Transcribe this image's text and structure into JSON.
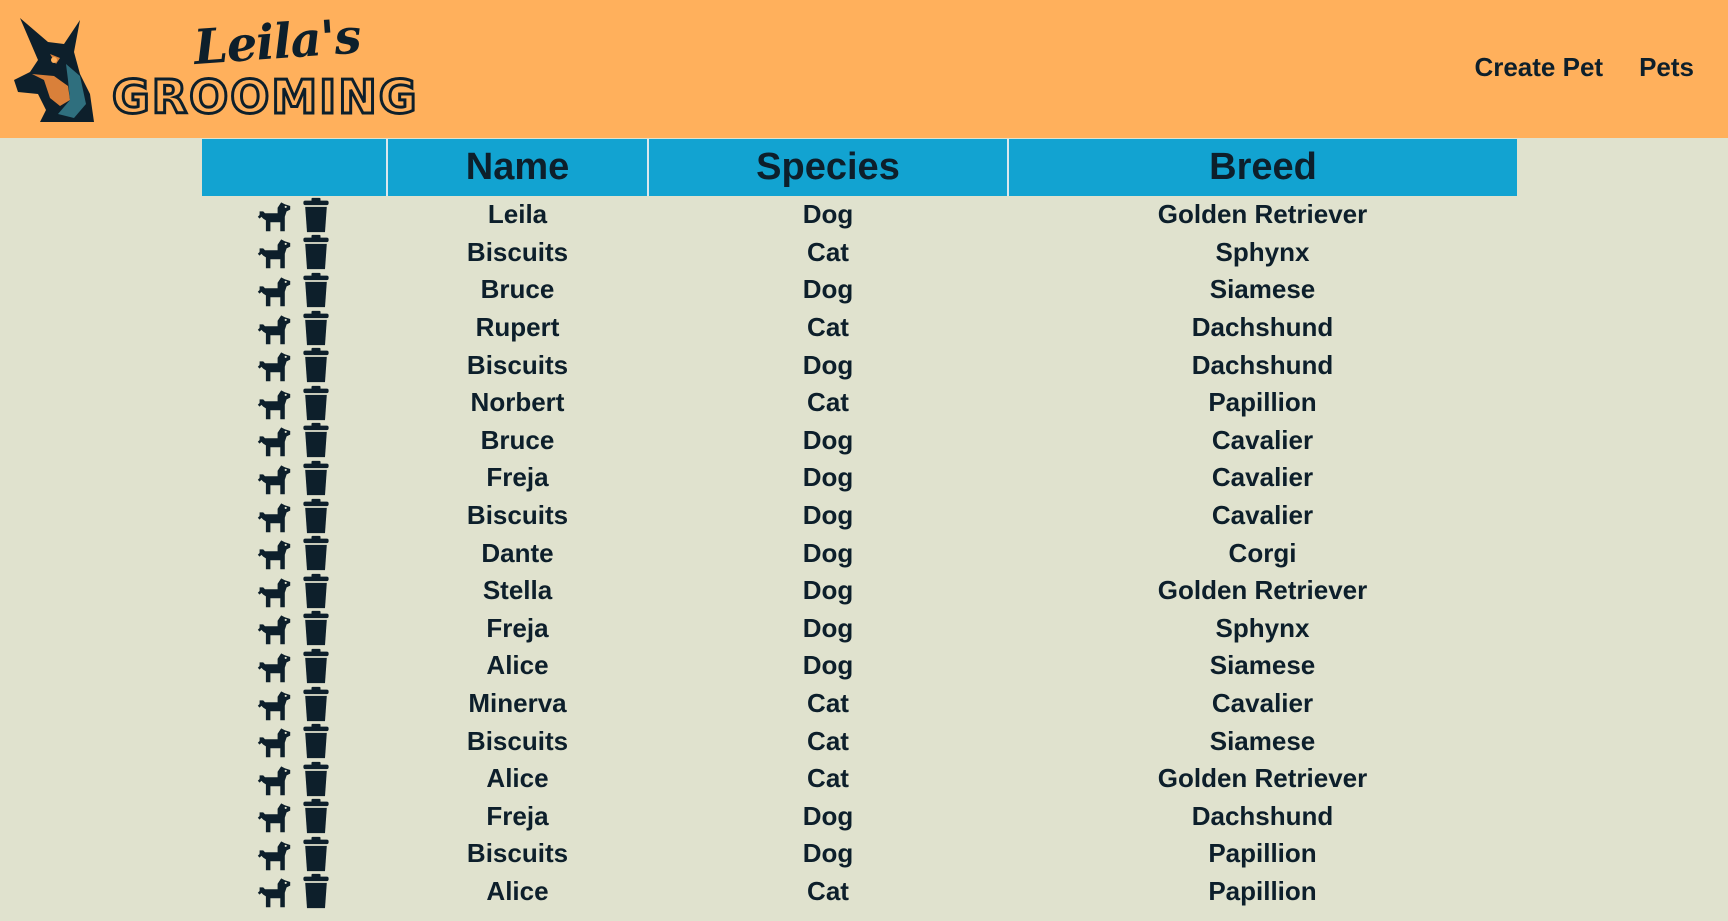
{
  "header": {
    "brand_script": "Leila's",
    "brand_outline": "GROOMING",
    "logo_icon": "doberman-logo-icon"
  },
  "nav": {
    "create_pet": "Create Pet",
    "pets": "Pets"
  },
  "table": {
    "columns": [
      "",
      "Name",
      "Species",
      "Breed"
    ],
    "row_actions": [
      "dog-icon",
      "trash-icon"
    ],
    "rows": [
      {
        "name": "Leila",
        "species": "Dog",
        "breed": "Golden Retriever"
      },
      {
        "name": "Biscuits",
        "species": "Cat",
        "breed": "Sphynx"
      },
      {
        "name": "Bruce",
        "species": "Dog",
        "breed": "Siamese"
      },
      {
        "name": "Rupert",
        "species": "Cat",
        "breed": "Dachshund"
      },
      {
        "name": "Biscuits",
        "species": "Dog",
        "breed": "Dachshund"
      },
      {
        "name": "Norbert",
        "species": "Cat",
        "breed": "Papillion"
      },
      {
        "name": "Bruce",
        "species": "Dog",
        "breed": "Cavalier"
      },
      {
        "name": "Freja",
        "species": "Dog",
        "breed": "Cavalier"
      },
      {
        "name": "Biscuits",
        "species": "Dog",
        "breed": "Cavalier"
      },
      {
        "name": "Dante",
        "species": "Dog",
        "breed": "Corgi"
      },
      {
        "name": "Stella",
        "species": "Dog",
        "breed": "Golden Retriever"
      },
      {
        "name": "Freja",
        "species": "Dog",
        "breed": "Sphynx"
      },
      {
        "name": "Alice",
        "species": "Dog",
        "breed": "Siamese"
      },
      {
        "name": "Minerva",
        "species": "Cat",
        "breed": "Cavalier"
      },
      {
        "name": "Biscuits",
        "species": "Cat",
        "breed": "Siamese"
      },
      {
        "name": "Alice",
        "species": "Cat",
        "breed": "Golden Retriever"
      },
      {
        "name": "Freja",
        "species": "Dog",
        "breed": "Dachshund"
      },
      {
        "name": "Biscuits",
        "species": "Dog",
        "breed": "Papillion"
      },
      {
        "name": "Alice",
        "species": "Cat",
        "breed": "Papillion"
      }
    ]
  },
  "colors": {
    "header_bg": "#ffb05c",
    "page_bg": "#e0e2ce",
    "table_header_bg": "#12a3d1",
    "text": "#0d1f2b"
  }
}
